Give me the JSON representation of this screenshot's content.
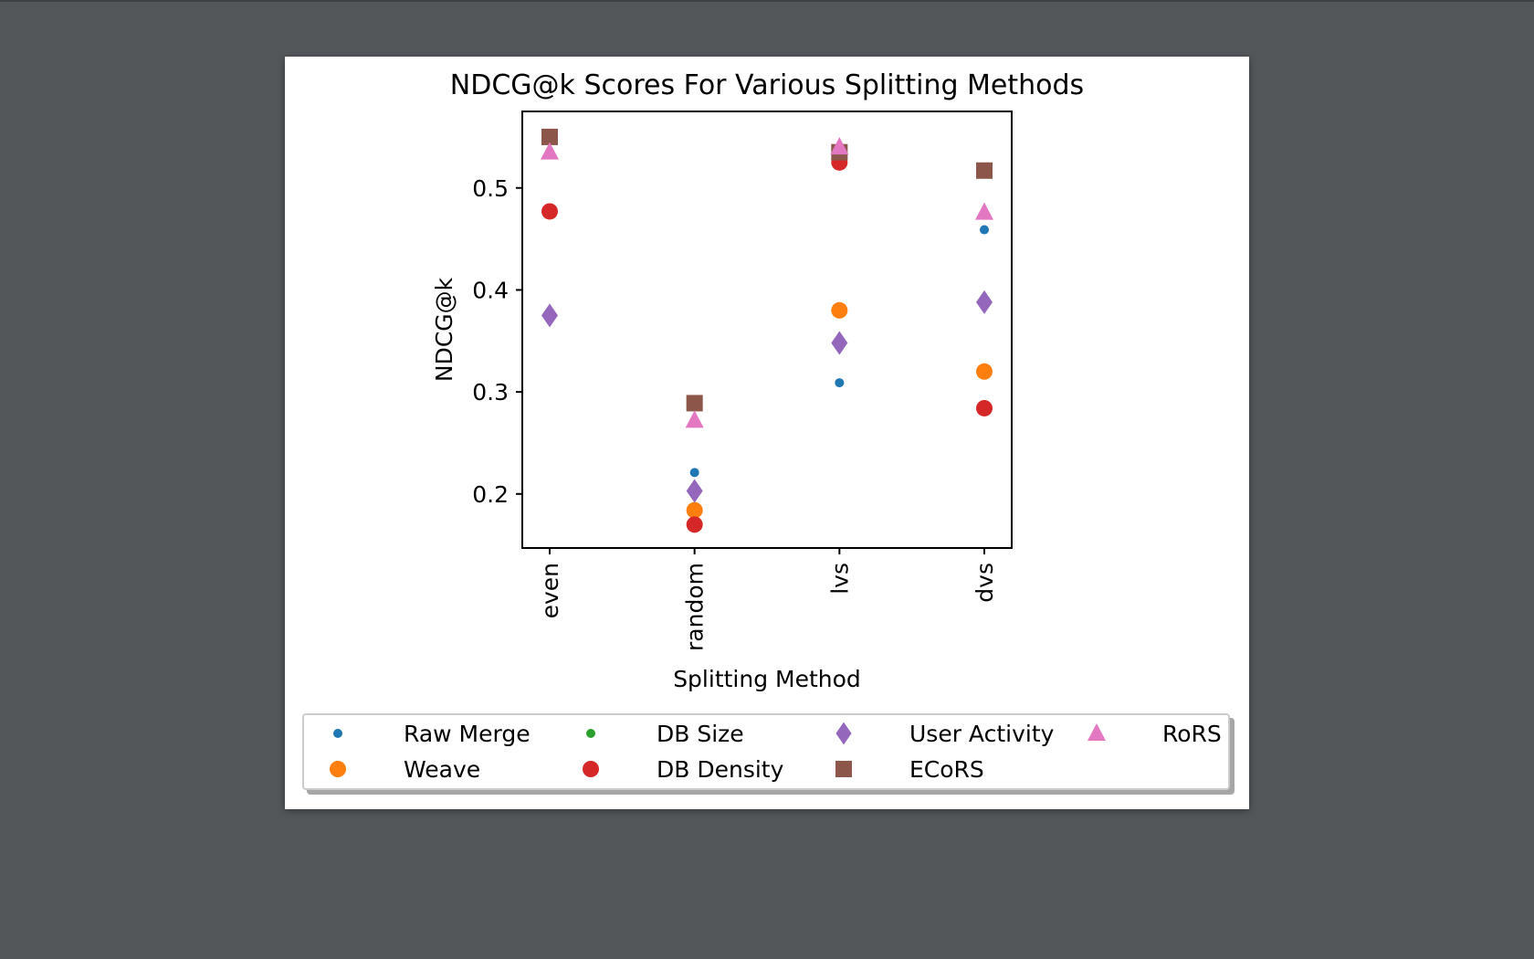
{
  "chart_data": {
    "type": "scatter",
    "title": "NDCG@k Scores For Various Splitting Methods",
    "xlabel": "Splitting Method",
    "ylabel": "NDCG@k",
    "categories": [
      "even",
      "random",
      "lvs",
      "dvs"
    ],
    "ylim": [
      0.147,
      0.575
    ],
    "yticks": [
      0.2,
      0.3,
      0.4,
      0.5
    ],
    "ytick_labels": [
      "0.2",
      "0.3",
      "0.4",
      "0.5"
    ],
    "grid": false,
    "legend_position": "bottom",
    "series": [
      {
        "name": "Raw Merge",
        "color": "#1f77b4",
        "marker": "small-circle",
        "values": [
          null,
          0.221,
          0.309,
          0.459
        ]
      },
      {
        "name": "Weave",
        "color": "#ff7f0e",
        "marker": "circle",
        "values": [
          null,
          0.184,
          0.38,
          0.32
        ]
      },
      {
        "name": "DB Size",
        "color": "#2ca02c",
        "marker": "small-circle",
        "values": [
          null,
          null,
          null,
          null
        ]
      },
      {
        "name": "DB Density",
        "color": "#d62728",
        "marker": "circle",
        "values": [
          0.477,
          0.17,
          0.525,
          0.284
        ]
      },
      {
        "name": "User Activity",
        "color": "#9467bd",
        "marker": "diamond",
        "values": [
          0.375,
          0.203,
          0.348,
          0.388
        ]
      },
      {
        "name": "ECoRS",
        "color": "#8c564b",
        "marker": "square",
        "values": [
          0.55,
          0.289,
          0.535,
          0.517
        ]
      },
      {
        "name": "RoRS",
        "color": "#e377c2",
        "marker": "triangle",
        "values": [
          0.535,
          0.272,
          0.54,
          0.476
        ]
      }
    ]
  }
}
